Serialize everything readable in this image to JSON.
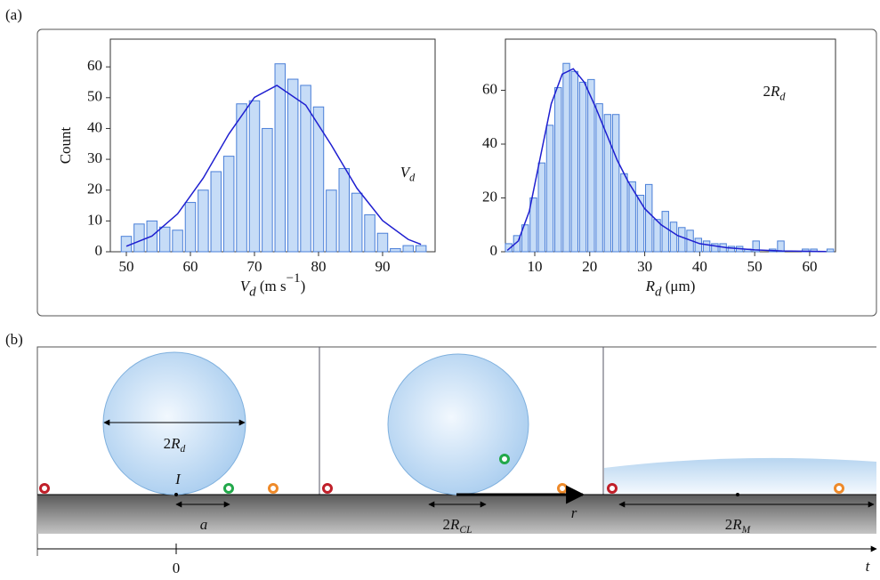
{
  "panel_labels": [
    "(a)",
    "(b)"
  ],
  "chart_data": [
    {
      "type": "histogram",
      "ylabel": "Count",
      "xlabel": [
        "V",
        "d",
        " (m s",
        "−1",
        ")"
      ],
      "bins": [
        49,
        51,
        53,
        55,
        57,
        59,
        61,
        63,
        65,
        67,
        69,
        71,
        73,
        75,
        77,
        79,
        81,
        83,
        85,
        87,
        89,
        91,
        93,
        95,
        97
      ],
      "counts": [
        5,
        9,
        10,
        8,
        7,
        16,
        20,
        26,
        31,
        48,
        49,
        40,
        61,
        56,
        54,
        47,
        20,
        27,
        19,
        12,
        6,
        1,
        2,
        2
      ],
      "fit": {
        "x": [
          50,
          54,
          58,
          62,
          66,
          70,
          73.5,
          78,
          82,
          86,
          90,
          94,
          96
        ],
        "values": [
          1.8,
          5.1,
          12.3,
          23.9,
          38.2,
          50.1,
          54,
          47.6,
          34.6,
          20.6,
          10.1,
          4.0,
          2.4
        ]
      },
      "xlim": [
        47.5,
        98.2
      ],
      "ylim": [
        0,
        69
      ],
      "xticks": [
        50,
        60,
        70,
        80,
        90
      ],
      "yticks": [
        0,
        10,
        20,
        30,
        40,
        50,
        60
      ],
      "color": "#c6dcf7",
      "edgecolor": "#4a7fd8",
      "fit_color": "#1f1fd0",
      "inset_label": [
        "V",
        "d"
      ]
    },
    {
      "type": "histogram",
      "xlabel": [
        "R",
        "d",
        " (μm)"
      ],
      "bins": [
        4.5,
        6,
        7.5,
        9,
        10.5,
        12,
        13.5,
        15,
        16.5,
        18,
        19.5,
        21,
        22.5,
        24,
        25.5,
        27,
        28.5,
        30,
        31.5,
        33,
        34.5,
        36,
        37.5,
        39,
        40.5,
        42,
        43.5,
        45,
        46.5,
        48,
        49.5,
        51,
        52.5,
        54,
        55.5,
        57,
        58.5,
        60,
        61.5,
        63,
        64.5
      ],
      "counts": [
        3,
        6,
        10,
        20,
        33,
        47,
        61,
        70,
        67,
        63,
        64,
        55,
        51,
        51,
        29,
        26,
        21,
        25,
        12,
        15,
        11,
        9,
        8,
        5,
        4,
        3,
        3,
        2,
        2,
        1,
        4,
        0,
        1,
        4,
        0,
        0,
        1,
        1,
        0,
        1
      ],
      "fit": {
        "x": [
          5,
          7,
          9,
          11,
          13,
          15,
          17,
          19,
          21,
          23,
          25,
          27,
          30,
          33,
          36,
          40,
          45,
          50,
          55,
          63
        ],
        "values": [
          0.5,
          4,
          15,
          35,
          55,
          66,
          68,
          63,
          54,
          44,
          34,
          26,
          16,
          10,
          6,
          3,
          1.5,
          0.7,
          0.3,
          0.1
        ]
      },
      "xlim": [
        4.66,
        64.7
      ],
      "ylim": [
        0,
        79
      ],
      "xticks": [
        10,
        20,
        30,
        40,
        50,
        60
      ],
      "yticks": [
        0,
        20,
        40,
        60
      ],
      "color": "#c6dcf7",
      "edgecolor": "#4a7fd8",
      "fit_color": "#1f1fd0",
      "inset_label": [
        "2",
        "R",
        "d"
      ]
    }
  ],
  "diagram": {
    "diameter": [
      "2",
      "R",
      "d"
    ],
    "impact": "I",
    "offset": "a",
    "contact": [
      "2",
      "R",
      "CL"
    ],
    "radius": "r",
    "spread": [
      "2",
      "R",
      "M"
    ],
    "origin": "0",
    "time": "t"
  }
}
